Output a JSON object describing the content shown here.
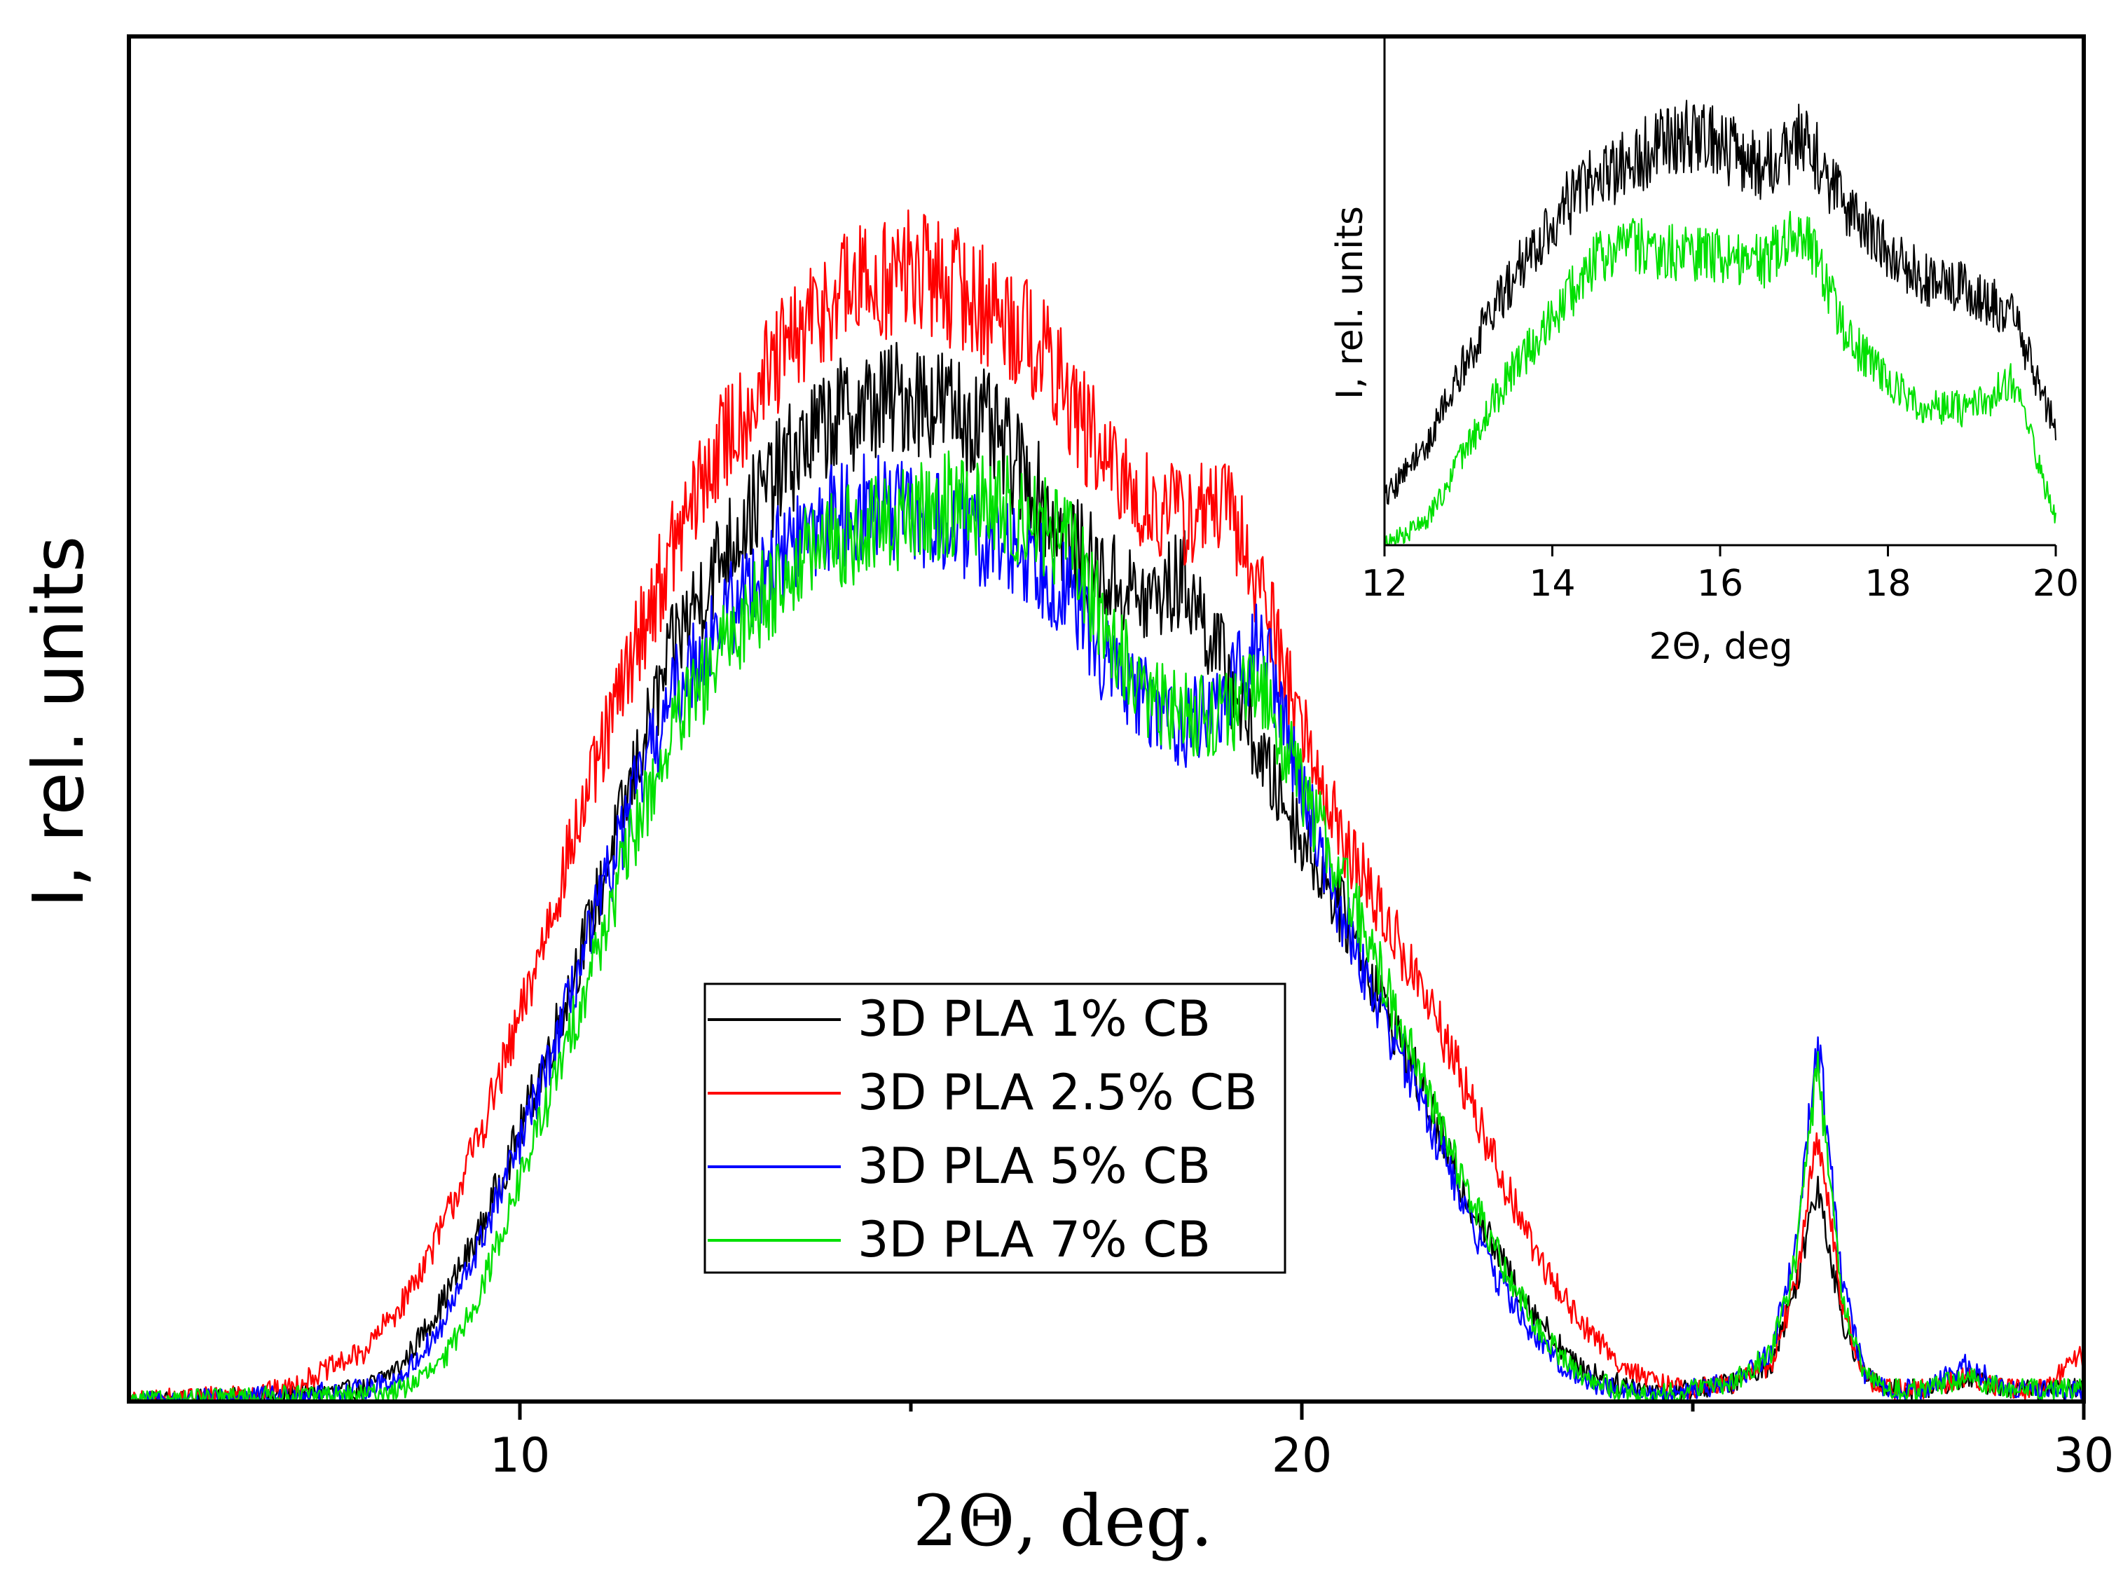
{
  "chart_data": [
    {
      "id": "main",
      "type": "line",
      "title": "",
      "xlabel": "2Θ, deg.",
      "ylabel": "I, rel. units",
      "xlim": [
        5,
        30
      ],
      "ylim": [
        0,
        1
      ],
      "x_ticks": [
        10,
        20,
        30
      ],
      "x_minor_ticks": [
        15,
        25
      ],
      "show_y_ticks": false,
      "grid": false,
      "legend": {
        "placement": "center-bottom",
        "entries": [
          "3D PLA 1% CB",
          "3D PLA 2.5% CB",
          "3D PLA 5% CB",
          "3D PLA 7% CB"
        ]
      },
      "series": [
        {
          "name": "3D PLA 1% CB",
          "color": "#000000",
          "x": [
            5,
            7,
            8,
            8.5,
            9,
            9.5,
            10,
            10.5,
            11,
            11.5,
            12,
            12.5,
            13,
            13.5,
            14,
            14.5,
            15,
            15.5,
            16,
            16.5,
            17,
            17.5,
            18,
            18.5,
            19,
            19.5,
            20,
            20.5,
            21,
            21.5,
            22,
            22.5,
            23,
            23.5,
            24,
            24.5,
            25,
            25.5,
            26,
            26.3,
            26.6,
            26.9,
            27.2,
            27.5,
            28,
            28.5,
            29,
            29.5,
            30
          ],
          "values": [
            0.0,
            0.005,
            0.01,
            0.03,
            0.08,
            0.14,
            0.22,
            0.31,
            0.41,
            0.52,
            0.62,
            0.68,
            0.73,
            0.77,
            0.8,
            0.81,
            0.82,
            0.81,
            0.79,
            0.75,
            0.7,
            0.67,
            0.65,
            0.67,
            0.6,
            0.52,
            0.46,
            0.4,
            0.33,
            0.26,
            0.18,
            0.12,
            0.07,
            0.03,
            0.015,
            0.01,
            0.01,
            0.015,
            0.03,
            0.09,
            0.18,
            0.07,
            0.02,
            0.01,
            0.01,
            0.02,
            0.01,
            0.01,
            0.01
          ]
        },
        {
          "name": "3D PLA 2.5% CB",
          "color": "#ff0000",
          "x": [
            5,
            7,
            8,
            8.5,
            9,
            9.5,
            10,
            10.5,
            11,
            11.5,
            12,
            12.5,
            13,
            13.5,
            14,
            14.5,
            15,
            15.5,
            16,
            16.5,
            17,
            17.5,
            18,
            18.5,
            19,
            19.5,
            20,
            20.5,
            21,
            21.5,
            22,
            22.5,
            23,
            23.5,
            24,
            24.5,
            25,
            25.5,
            26,
            26.3,
            26.6,
            26.9,
            27.2,
            27.5,
            28,
            28.5,
            29,
            29.5,
            30
          ],
          "values": [
            0.0,
            0.01,
            0.04,
            0.08,
            0.14,
            0.22,
            0.31,
            0.42,
            0.52,
            0.62,
            0.7,
            0.77,
            0.82,
            0.86,
            0.9,
            0.91,
            0.92,
            0.91,
            0.89,
            0.87,
            0.82,
            0.76,
            0.73,
            0.72,
            0.73,
            0.66,
            0.55,
            0.46,
            0.4,
            0.34,
            0.27,
            0.19,
            0.12,
            0.07,
            0.035,
            0.015,
            0.01,
            0.015,
            0.03,
            0.09,
            0.22,
            0.08,
            0.02,
            0.01,
            0.01,
            0.02,
            0.01,
            0.01,
            0.04
          ]
        },
        {
          "name": "3D PLA 5% CB",
          "color": "#0000ff",
          "x": [
            5,
            7,
            8,
            8.5,
            9,
            9.5,
            10,
            10.5,
            11,
            11.5,
            12,
            12.5,
            13,
            13.5,
            14,
            14.5,
            15,
            15.5,
            16,
            16.5,
            17,
            17.5,
            18,
            18.5,
            19,
            19.5,
            20,
            20.5,
            21,
            21.5,
            22,
            22.5,
            23,
            23.5,
            24,
            24.5,
            25,
            25.5,
            26,
            26.3,
            26.6,
            26.9,
            27.2,
            27.5,
            28,
            28.5,
            29,
            29.5,
            30
          ],
          "values": [
            0.0,
            0.005,
            0.01,
            0.02,
            0.06,
            0.13,
            0.21,
            0.3,
            0.4,
            0.5,
            0.58,
            0.63,
            0.67,
            0.7,
            0.72,
            0.73,
            0.72,
            0.71,
            0.7,
            0.69,
            0.66,
            0.6,
            0.57,
            0.55,
            0.57,
            0.62,
            0.5,
            0.4,
            0.32,
            0.25,
            0.17,
            0.1,
            0.05,
            0.02,
            0.01,
            0.005,
            0.01,
            0.015,
            0.04,
            0.12,
            0.3,
            0.1,
            0.02,
            0.01,
            0.01,
            0.03,
            0.01,
            0.01,
            0.01
          ]
        },
        {
          "name": "3D PLA 7% CB",
          "color": "#00e000",
          "x": [
            5,
            7,
            8,
            8.5,
            9,
            9.5,
            10,
            10.5,
            11,
            11.5,
            12,
            12.5,
            13,
            13.5,
            14,
            14.5,
            15,
            15.5,
            16,
            16.5,
            17,
            17.5,
            18,
            18.5,
            19,
            19.5,
            20,
            20.5,
            21,
            21.5,
            22,
            22.5,
            23,
            23.5,
            24,
            24.5,
            25,
            25.5,
            26,
            26.3,
            26.6,
            26.9,
            27.2,
            27.5,
            28,
            28.5,
            29,
            29.5,
            30
          ],
          "values": [
            0.0,
            0.005,
            0.005,
            0.01,
            0.03,
            0.09,
            0.18,
            0.27,
            0.37,
            0.47,
            0.55,
            0.6,
            0.65,
            0.68,
            0.7,
            0.71,
            0.72,
            0.73,
            0.73,
            0.72,
            0.7,
            0.63,
            0.57,
            0.56,
            0.56,
            0.58,
            0.5,
            0.43,
            0.35,
            0.27,
            0.19,
            0.12,
            0.06,
            0.025,
            0.01,
            0.005,
            0.01,
            0.015,
            0.04,
            0.11,
            0.27,
            0.09,
            0.02,
            0.01,
            0.01,
            0.02,
            0.01,
            0.01,
            0.01
          ]
        }
      ]
    },
    {
      "id": "inset",
      "type": "line",
      "title": "",
      "xlabel": "2Θ, deg",
      "ylabel": "I, rel. units",
      "xlim": [
        12,
        20
      ],
      "ylim": [
        0,
        1
      ],
      "x_ticks": [
        12,
        14,
        16,
        18,
        20
      ],
      "show_y_ticks": false,
      "grid": false,
      "series": [
        {
          "name": "black",
          "color": "#000000",
          "x": [
            12,
            12.5,
            13,
            13.5,
            14,
            14.5,
            15,
            15.5,
            16,
            16.5,
            17,
            17.5,
            18,
            18.5,
            19,
            19.5,
            20
          ],
          "values": [
            0.1,
            0.22,
            0.42,
            0.58,
            0.72,
            0.8,
            0.85,
            0.9,
            0.88,
            0.82,
            0.9,
            0.74,
            0.64,
            0.58,
            0.56,
            0.5,
            0.25
          ]
        },
        {
          "name": "green",
          "color": "#00e000",
          "x": [
            12,
            12.5,
            13,
            13.5,
            14,
            14.5,
            15,
            15.5,
            16,
            16.5,
            17,
            17.5,
            18,
            18.5,
            19,
            19.5,
            20
          ],
          "values": [
            0.0,
            0.05,
            0.22,
            0.38,
            0.5,
            0.62,
            0.66,
            0.64,
            0.64,
            0.62,
            0.7,
            0.46,
            0.36,
            0.3,
            0.3,
            0.36,
            0.05
          ]
        }
      ]
    }
  ]
}
